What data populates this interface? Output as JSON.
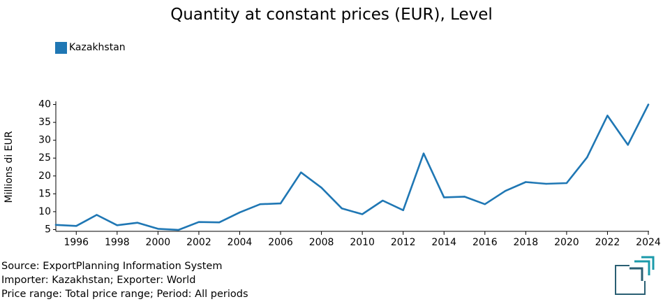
{
  "chart_data": {
    "type": "line",
    "title": "Quantity at constant prices (EUR), Level",
    "xlabel": "",
    "ylabel": "Millions di EUR",
    "xlim": [
      1995,
      2024
    ],
    "ylim": [
      4.5,
      40.5
    ],
    "y_ticks": [
      5,
      10,
      15,
      20,
      25,
      30,
      35,
      40
    ],
    "x_ticks": [
      1996,
      1998,
      2000,
      2002,
      2004,
      2006,
      2008,
      2010,
      2012,
      2014,
      2016,
      2018,
      2020,
      2022,
      2024
    ],
    "grid": false,
    "legend_position": "top-left",
    "series": [
      {
        "name": "Kazakhstan",
        "color": "#1f77b4",
        "x": [
          1995,
          1996,
          1997,
          1998,
          1999,
          2000,
          2001,
          2002,
          2003,
          2004,
          2005,
          2006,
          2007,
          2008,
          2009,
          2010,
          2011,
          2012,
          2013,
          2014,
          2015,
          2016,
          2017,
          2018,
          2019,
          2020,
          2021,
          2022,
          2023,
          2024
        ],
        "values": [
          6.3,
          6.0,
          9.1,
          6.2,
          6.9,
          5.2,
          4.9,
          7.1,
          7.0,
          9.8,
          12.1,
          12.3,
          21.0,
          16.7,
          10.9,
          9.3,
          13.1,
          10.4,
          26.3,
          14.0,
          14.2,
          12.1,
          15.8,
          18.3,
          17.8,
          18.0,
          25.2,
          36.9,
          28.7,
          40.0
        ]
      }
    ]
  },
  "footer": {
    "source": "Source: ExportPlanning Information System",
    "importer_exporter": "Importer: Kazakhstan; Exporter: World",
    "price_period": "Price range: Total price range; Period: All periods"
  },
  "logo": {
    "colors": [
      "#1b9aaa",
      "#2a5f73"
    ]
  }
}
